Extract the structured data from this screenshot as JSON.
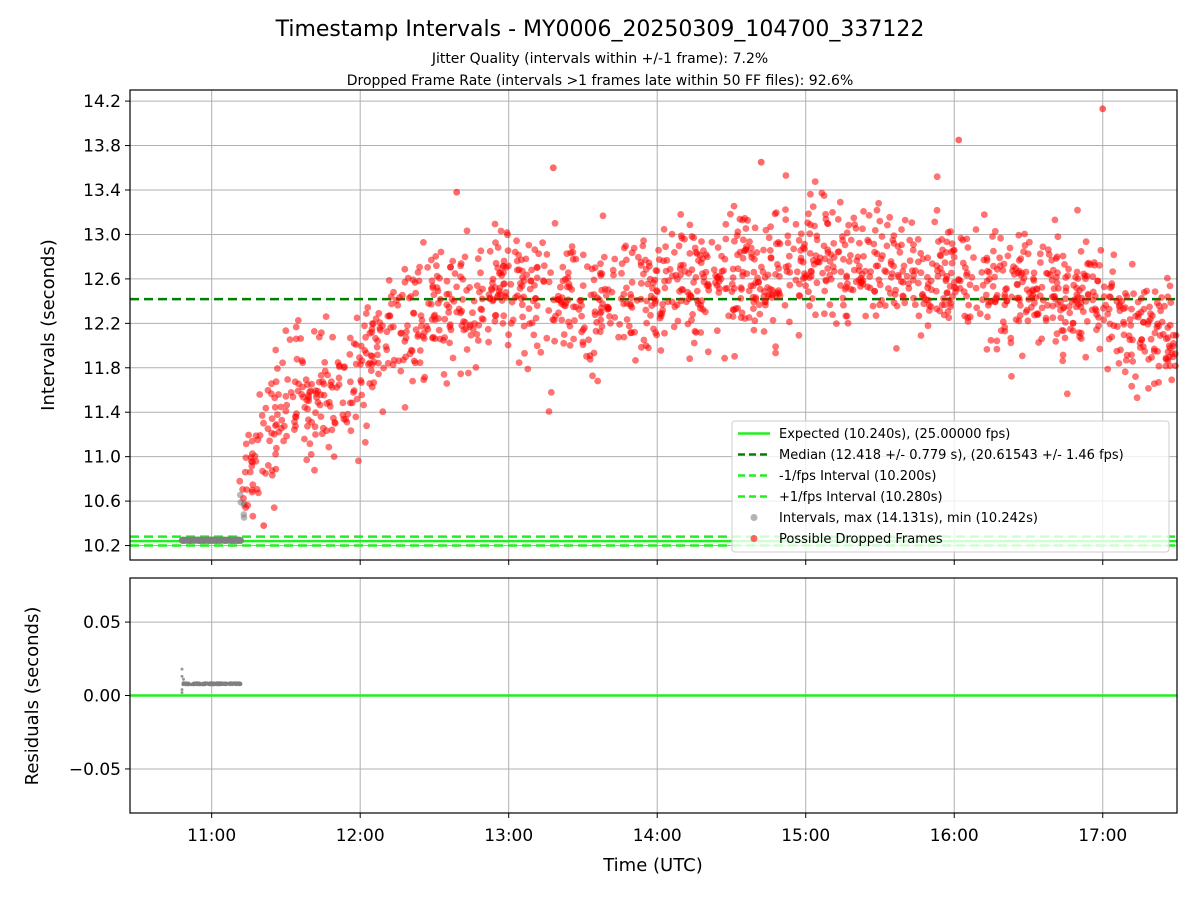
{
  "header": {
    "title": "Timestamp Intervals - MY0006_20250309_104700_337122",
    "subtitle_1": "Jitter Quality (intervals within +/-1 frame): 7.2%",
    "subtitle_2": "Dropped Frame Rate (intervals >1 frames late within 50 FF files): 92.6%"
  },
  "chart_data": [
    {
      "type": "scatter",
      "xlabel": "",
      "ylabel": "Intervals (seconds)",
      "xlim": [
        10.45,
        17.5
      ],
      "ylim": [
        10.07,
        14.3
      ],
      "yticks": [
        "10.2",
        "10.6",
        "11.0",
        "11.4",
        "11.8",
        "12.2",
        "12.6",
        "13.0",
        "13.4",
        "13.8",
        "14.2"
      ],
      "ytick_values": [
        10.2,
        10.6,
        11.0,
        11.4,
        11.8,
        12.2,
        12.6,
        13.0,
        13.4,
        13.8,
        14.2
      ],
      "grid": true,
      "legend_position": "lower-right",
      "lines": [
        {
          "name": "Expected (10.240s), (25.00000 fps)",
          "y": 10.24,
          "style": "solid",
          "color": "#22ee22"
        },
        {
          "name": "Median (12.418 +/- 0.779 s), (20.61543 +/- 1.46 fps)",
          "y": 12.418,
          "style": "dashed",
          "color": "#008000"
        },
        {
          "name": "-1/fps Interval (10.200s)",
          "y": 10.2,
          "style": "dashed",
          "color": "#22ee22"
        },
        {
          "name": "+1/fps Interval (10.280s)",
          "y": 10.28,
          "style": "dashed",
          "color": "#22ee22"
        }
      ],
      "series": [
        {
          "name": "Intervals, max (14.131s), min (10.242s)",
          "color": "#808080",
          "max": 14.131,
          "min": 10.242,
          "segments": [
            {
              "x_start": 10.8,
              "x_end": 11.2,
              "y_center": 10.248,
              "y_spread": 0.004,
              "count": 300
            },
            {
              "x_start": 11.18,
              "x_end": 11.22,
              "y_center": 10.6,
              "y_spread": 0.15,
              "count": 6
            }
          ]
        },
        {
          "name": "Possible Dropped Frames",
          "color": "#ff0000",
          "count": 1550,
          "x_range": [
            11.18,
            17.5
          ],
          "trend_points": [
            {
              "x": 11.2,
              "y": 10.7
            },
            {
              "x": 11.5,
              "y": 11.55
            },
            {
              "x": 11.8,
              "y": 11.5
            },
            {
              "x": 12.0,
              "y": 11.85
            },
            {
              "x": 12.3,
              "y": 12.2
            },
            {
              "x": 12.6,
              "y": 12.35
            },
            {
              "x": 13.0,
              "y": 12.5
            },
            {
              "x": 13.5,
              "y": 12.35
            },
            {
              "x": 13.8,
              "y": 12.45
            },
            {
              "x": 14.3,
              "y": 12.6
            },
            {
              "x": 15.0,
              "y": 12.75
            },
            {
              "x": 15.5,
              "y": 12.7
            },
            {
              "x": 16.0,
              "y": 12.65
            },
            {
              "x": 16.5,
              "y": 12.5
            },
            {
              "x": 17.0,
              "y": 12.35
            },
            {
              "x": 17.5,
              "y": 12.05
            }
          ],
          "spread": 0.28,
          "outliers": [
            {
              "x": 17.0,
              "y": 14.131
            },
            {
              "x": 16.03,
              "y": 13.85
            },
            {
              "x": 14.7,
              "y": 13.65
            },
            {
              "x": 13.3,
              "y": 13.6
            },
            {
              "x": 12.65,
              "y": 13.38
            },
            {
              "x": 11.35,
              "y": 10.38
            }
          ]
        }
      ]
    },
    {
      "type": "scatter",
      "xlabel": "Time (UTC)",
      "ylabel": "Residuals (seconds)",
      "xlim": [
        10.45,
        17.5
      ],
      "ylim": [
        -0.08,
        0.08
      ],
      "xticks": [
        "11:00",
        "12:00",
        "13:00",
        "14:00",
        "15:00",
        "16:00",
        "17:00"
      ],
      "xtick_values": [
        11,
        12,
        13,
        14,
        15,
        16,
        17
      ],
      "yticks": [
        "−0.05",
        "0.00",
        "0.05"
      ],
      "ytick_values": [
        -0.05,
        0.0,
        0.05
      ],
      "grid": true,
      "lines": [
        {
          "y": 0.0,
          "style": "solid",
          "color": "#22ee22"
        }
      ],
      "series": [
        {
          "color": "#808080",
          "x_start": 10.8,
          "x_end": 11.2,
          "y_center": 0.008,
          "y_spread": 0.0007,
          "count": 300,
          "extra_points": [
            {
              "x": 10.8,
              "y": 0.018
            },
            {
              "x": 10.8,
              "y": 0.013
            },
            {
              "x": 10.81,
              "y": 0.011
            },
            {
              "x": 10.8,
              "y": 0.004
            },
            {
              "x": 10.8,
              "y": 0.002
            }
          ]
        }
      ]
    }
  ]
}
